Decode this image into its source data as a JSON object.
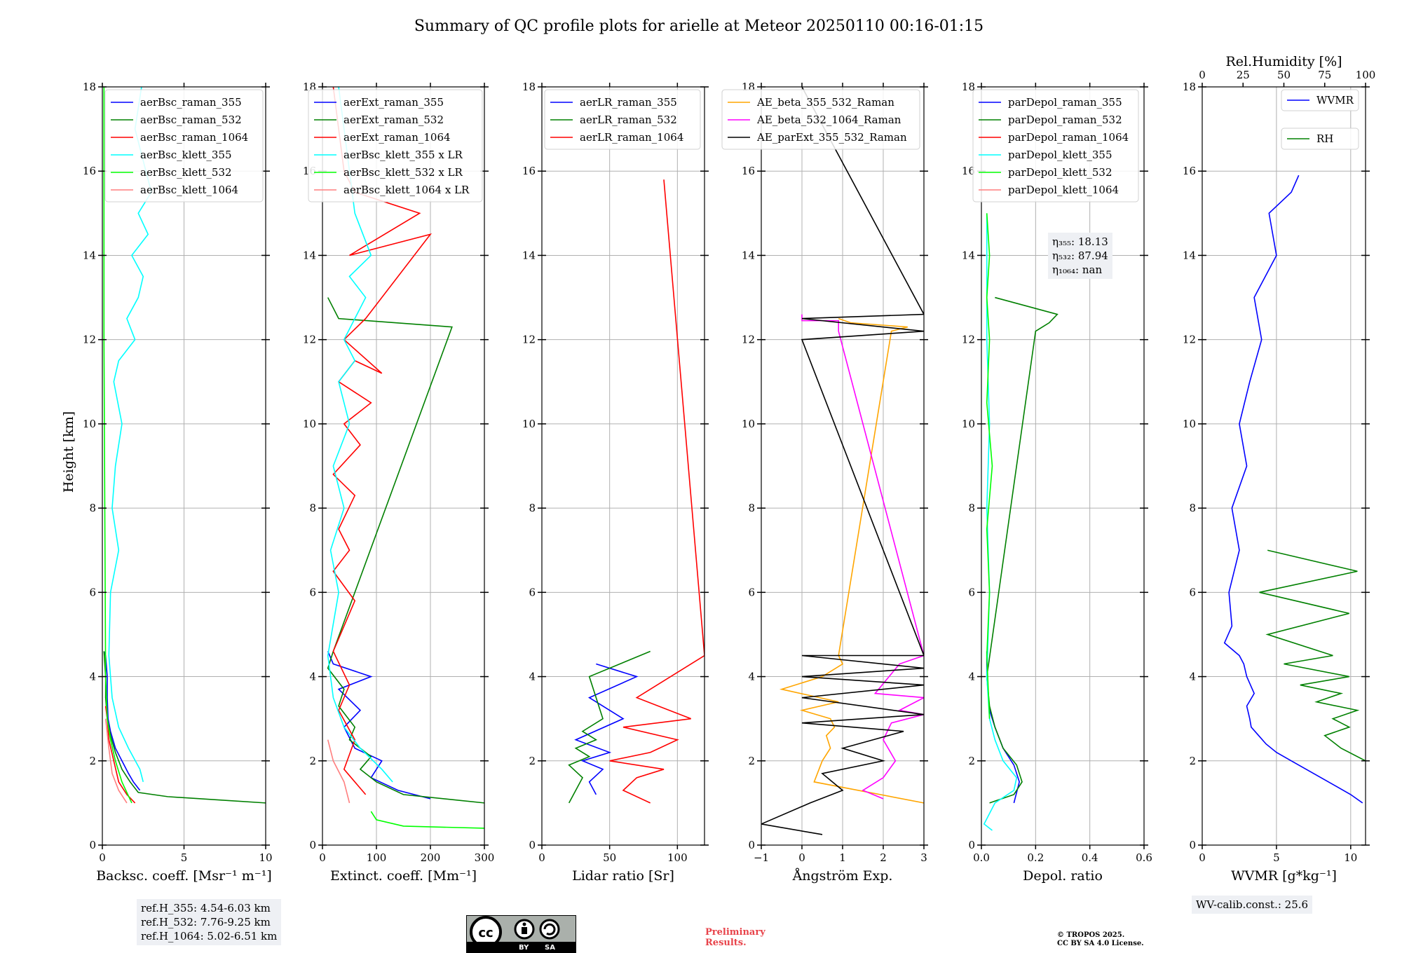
{
  "figure": {
    "title": "Summary of QC profile plots for arielle at Meteor 20250110 00:16-01:15",
    "ylabel": "Height [km]"
  },
  "info": {
    "ref_lines": [
      "ref.H_355: 4.54-6.03 km",
      "ref.H_532: 7.76-9.25 km",
      "ref.H_1064: 5.02-6.51 km"
    ],
    "eta_lines": [
      "η₃₅₅: 18.13",
      "η₅₃₂: 87.94",
      "η₁₀₆₄: nan"
    ],
    "wv_calib": "WV-calib.const.: 25.6",
    "preliminary": [
      "Preliminary",
      "Results."
    ],
    "copyright": [
      "© TROPOS 2025.",
      "CC BY SA 4.0 License."
    ],
    "cc_labels": [
      "cc",
      "BY",
      "SA"
    ]
  },
  "colors": {
    "blue": "#0000ff",
    "green": "#008000",
    "red": "#ff0000",
    "cyan": "#00ffff",
    "lime": "#00ff00",
    "salmon": "#ff7f7f",
    "orange": "#ffa500",
    "magenta": "#ff00ff",
    "black": "#000000"
  },
  "chart_data": [
    {
      "type": "line",
      "id": "backscatter",
      "xlabel": "Backsc. coeff. [Msr⁻¹ m⁻¹]",
      "xlim": [
        0,
        10
      ],
      "xticks": [
        0,
        5,
        10
      ],
      "ylim": [
        0,
        18
      ],
      "yticks": [
        0,
        2,
        4,
        6,
        8,
        10,
        12,
        14,
        16,
        18
      ],
      "legend_position": "top",
      "series": [
        {
          "name": "aerBsc_raman_355",
          "color": "blue",
          "x": [
            2.3,
            1.9,
            1.6,
            1.2,
            0.8,
            0.5,
            0.35,
            0.3,
            0.3,
            0.2,
            0.1
          ],
          "y": [
            1.3,
            1.5,
            1.7,
            2.0,
            2.3,
            2.7,
            3.0,
            3.5,
            4.0,
            4.5,
            4.6
          ]
        },
        {
          "name": "aerBsc_raman_532",
          "color": "green",
          "x": [
            10.0,
            4.0,
            2.2,
            1.7,
            1.2,
            0.8,
            0.5,
            0.3,
            0.2,
            0.2,
            0.1
          ],
          "y": [
            1.0,
            1.15,
            1.25,
            1.5,
            1.8,
            2.2,
            2.6,
            3.0,
            3.5,
            4.0,
            4.6
          ]
        },
        {
          "name": "aerBsc_raman_1064",
          "color": "red",
          "x": [
            2.0,
            1.5,
            1.0,
            0.7,
            0.4,
            0.3,
            0.2
          ],
          "y": [
            1.0,
            1.2,
            1.5,
            2.0,
            2.5,
            3.0,
            3.3
          ]
        },
        {
          "name": "aerBsc_klett_355",
          "color": "cyan",
          "x": [
            2.5,
            2.3,
            1.6,
            1.0,
            0.6,
            0.4,
            0.5,
            1.0,
            0.6,
            0.8,
            1.2,
            0.7,
            1.0,
            2.0,
            1.5,
            2.2,
            2.5,
            1.8,
            2.8,
            2.2,
            3.0,
            2.0,
            2.4
          ],
          "y": [
            1.5,
            1.8,
            2.3,
            2.8,
            3.5,
            4.5,
            6.0,
            7.0,
            8.0,
            9.0,
            10.0,
            11.0,
            11.5,
            12.0,
            12.5,
            13.0,
            13.5,
            14.0,
            14.5,
            15.0,
            15.5,
            17.0,
            18.0
          ]
        },
        {
          "name": "aerBsc_klett_532",
          "color": "lime",
          "x": [
            1.8,
            1.2,
            0.8,
            0.5,
            0.3,
            0.2,
            0.15,
            0.1,
            0.1
          ],
          "y": [
            1.0,
            1.5,
            2.0,
            2.5,
            3.0,
            4.0,
            8.0,
            12.0,
            18.0
          ]
        },
        {
          "name": "aerBsc_klett_1064",
          "color": "salmon",
          "x": [
            1.5,
            1.0,
            0.6,
            0.4,
            0.2
          ],
          "y": [
            1.0,
            1.3,
            1.7,
            2.3,
            3.0
          ]
        }
      ]
    },
    {
      "type": "line",
      "id": "extinction",
      "xlabel": "Extinct. coeff. [Mm⁻¹]",
      "xlim": [
        0,
        300
      ],
      "xticks": [
        0,
        100,
        200,
        300
      ],
      "ylim": [
        0,
        18
      ],
      "yticks": [
        0,
        2,
        4,
        6,
        8,
        10,
        12,
        14,
        16,
        18
      ],
      "legend_position": "top",
      "series": [
        {
          "name": "aerExt_raman_355",
          "color": "blue",
          "x": [
            200,
            140,
            90,
            110,
            60,
            40,
            70,
            30,
            90,
            20,
            10
          ],
          "y": [
            1.1,
            1.3,
            1.6,
            2.0,
            2.3,
            2.8,
            3.2,
            3.7,
            4.0,
            4.3,
            4.6
          ]
        },
        {
          "name": "aerExt_raman_532",
          "color": "green",
          "x": [
            300,
            150,
            100,
            70,
            90,
            50,
            60,
            30,
            40,
            10,
            20,
            240,
            30,
            10
          ],
          "y": [
            1.0,
            1.2,
            1.5,
            1.8,
            2.1,
            2.5,
            2.8,
            3.3,
            3.7,
            4.2,
            4.6,
            12.3,
            12.5,
            13.0
          ]
        },
        {
          "name": "aerExt_raman_1064",
          "color": "red",
          "x": [
            80,
            40,
            60,
            30,
            50,
            20,
            40,
            60,
            20,
            50,
            30,
            60,
            20,
            70,
            40,
            90,
            30,
            60,
            110,
            40,
            80,
            200,
            50,
            180,
            60,
            40,
            20
          ],
          "y": [
            1.2,
            1.8,
            2.5,
            3.2,
            3.8,
            4.6,
            5.2,
            5.8,
            6.5,
            7.0,
            7.5,
            8.3,
            8.8,
            9.5,
            10.0,
            10.5,
            11.0,
            11.5,
            11.2,
            12.0,
            12.5,
            14.5,
            14.0,
            15.0,
            15.5,
            16.0,
            18.0
          ]
        },
        {
          "name": "aerBsc_klett_355 x LR",
          "color": "cyan",
          "x": [
            130,
            110,
            70,
            40,
            20,
            10,
            30,
            15,
            40,
            20,
            50,
            30,
            60,
            40,
            80,
            50,
            90,
            60,
            40,
            30
          ],
          "y": [
            1.5,
            1.8,
            2.3,
            2.8,
            3.5,
            4.5,
            6.0,
            7.0,
            8.0,
            9.0,
            10.0,
            11.0,
            11.5,
            12.0,
            13.0,
            13.5,
            14.0,
            15.0,
            17.0,
            18.0
          ]
        },
        {
          "name": "aerBsc_klett_532 x LR",
          "color": "lime",
          "x": [
            300,
            150,
            100,
            90
          ],
          "y": [
            0.4,
            0.45,
            0.6,
            0.8
          ]
        },
        {
          "name": "aerBsc_klett_1064 x LR",
          "color": "salmon",
          "x": [
            50,
            40,
            20,
            10
          ],
          "y": [
            1.0,
            1.5,
            2.0,
            2.5
          ]
        }
      ]
    },
    {
      "type": "line",
      "id": "lidar_ratio",
      "xlabel": "Lidar ratio [Sr]",
      "xlim": [
        0,
        120
      ],
      "xticks": [
        0,
        50,
        100
      ],
      "ylim": [
        0,
        18
      ],
      "yticks": [
        0,
        2,
        4,
        6,
        8,
        10,
        12,
        14,
        16,
        18
      ],
      "legend_position": "top",
      "series": [
        {
          "name": "aerLR_raman_355",
          "color": "blue",
          "x": [
            40,
            35,
            45,
            30,
            50,
            25,
            60,
            35,
            70,
            40
          ],
          "y": [
            1.2,
            1.5,
            1.8,
            2.0,
            2.2,
            2.5,
            3.0,
            3.5,
            4.0,
            4.3
          ]
        },
        {
          "name": "aerLR_raman_532",
          "color": "green",
          "x": [
            20,
            25,
            30,
            20,
            35,
            25,
            40,
            30,
            45,
            35,
            80
          ],
          "y": [
            1.0,
            1.3,
            1.6,
            1.9,
            2.1,
            2.3,
            2.5,
            2.7,
            3.0,
            4.0,
            4.6
          ]
        },
        {
          "name": "aerLR_raman_1064",
          "color": "red",
          "x": [
            80,
            60,
            70,
            90,
            50,
            80,
            100,
            60,
            110,
            70,
            120,
            90
          ],
          "y": [
            1.0,
            1.3,
            1.6,
            1.8,
            2.0,
            2.2,
            2.5,
            2.8,
            3.0,
            3.5,
            4.5,
            15.8
          ]
        }
      ]
    },
    {
      "type": "line",
      "id": "angstrom",
      "xlabel": "Ångström Exp.",
      "xlim": [
        -1,
        3
      ],
      "xticks": [
        -1,
        0,
        1,
        2,
        3
      ],
      "ylim": [
        0,
        18
      ],
      "yticks": [
        0,
        2,
        4,
        6,
        8,
        10,
        12,
        14,
        16,
        18
      ],
      "legend_position": "top",
      "series": [
        {
          "name": "AE_beta_355_532_Raman",
          "color": "orange",
          "x": [
            3.0,
            0.3,
            0.5,
            0.7,
            0.6,
            0.8,
            0.7,
            0.0,
            0.9,
            -0.5,
            0.5,
            1.0,
            0.9,
            2.2,
            2.6,
            1.2,
            0.9
          ],
          "y": [
            1.0,
            1.5,
            2.0,
            2.3,
            2.6,
            2.8,
            3.0,
            3.2,
            3.4,
            3.7,
            4.0,
            4.3,
            4.5,
            12.2,
            12.3,
            12.4,
            12.5
          ]
        },
        {
          "name": "AE_beta_532_1064_Raman",
          "color": "magenta",
          "x": [
            2.0,
            1.5,
            2.0,
            2.3,
            2.0,
            2.2,
            3.0,
            2.4,
            3.0,
            1.8,
            2.4,
            3.0,
            0.9,
            0.9,
            0.0,
            0.0
          ],
          "y": [
            1.1,
            1.3,
            1.6,
            2.0,
            2.5,
            2.9,
            3.1,
            3.2,
            3.5,
            3.6,
            4.3,
            4.5,
            12.2,
            12.45,
            12.45,
            12.6
          ]
        },
        {
          "name": "AE_parExt_355_532_Raman",
          "color": "black",
          "x": [
            0.5,
            -1.0,
            0.2,
            1.0,
            0.5,
            2.0,
            1.0,
            2.5,
            0.0,
            3.0,
            0.0,
            3.0,
            0.0,
            3.0,
            0.0,
            3.0,
            0.0,
            3.0,
            0.0,
            3.0,
            0.0
          ],
          "y": [
            0.25,
            0.5,
            1.0,
            1.3,
            1.7,
            2.0,
            2.3,
            2.7,
            2.9,
            3.1,
            3.5,
            3.8,
            4.0,
            4.2,
            4.5,
            4.5,
            12.0,
            12.2,
            12.5,
            12.6,
            18.0
          ]
        }
      ]
    },
    {
      "type": "line",
      "id": "depolarization",
      "xlabel": "Depol. ratio",
      "xlim": [
        0,
        0.6
      ],
      "xticks": [
        0.0,
        0.2,
        0.4,
        0.6
      ],
      "ylim": [
        0,
        18
      ],
      "yticks": [
        0,
        2,
        4,
        6,
        8,
        10,
        12,
        14,
        16,
        18
      ],
      "legend_position": "top",
      "series": [
        {
          "name": "parDepol_raman_355",
          "color": "blue",
          "x": [
            0.12,
            0.14,
            0.12,
            0.08,
            0.05,
            0.03,
            0.02,
            0.02
          ],
          "y": [
            1.0,
            1.5,
            1.9,
            2.3,
            2.8,
            3.2,
            4.0,
            4.6
          ]
        },
        {
          "name": "parDepol_raman_532",
          "color": "green",
          "x": [
            0.03,
            0.12,
            0.15,
            0.13,
            0.08,
            0.05,
            0.03,
            0.02,
            0.2,
            0.25,
            0.28,
            0.05
          ],
          "y": [
            1.0,
            1.2,
            1.5,
            1.9,
            2.3,
            2.8,
            3.3,
            4.0,
            12.2,
            12.4,
            12.6,
            13.0
          ]
        },
        {
          "name": "parDepol_raman_1064",
          "color": "red",
          "x": [],
          "y": []
        },
        {
          "name": "parDepol_klett_355",
          "color": "cyan",
          "x": [
            0.04,
            0.01,
            0.05,
            0.12,
            0.13,
            0.08,
            0.05,
            0.03,
            0.02,
            0.03,
            0.02,
            0.03,
            0.02,
            0.02
          ],
          "y": [
            0.35,
            0.5,
            1.0,
            1.3,
            1.6,
            2.0,
            2.5,
            3.0,
            4.0,
            6.0,
            8.0,
            10.0,
            12.0,
            15.0
          ]
        },
        {
          "name": "parDepol_klett_532",
          "color": "lime",
          "x": [
            0.03,
            0.02,
            0.03,
            0.02,
            0.04,
            0.02,
            0.03,
            0.02,
            0.03,
            0.02
          ],
          "y": [
            3.0,
            4.5,
            6.0,
            7.5,
            9.0,
            10.5,
            12.0,
            13.0,
            14.0,
            15.0
          ]
        },
        {
          "name": "parDepol_klett_1064",
          "color": "salmon",
          "x": [],
          "y": []
        }
      ]
    },
    {
      "type": "line",
      "id": "wvmr_rh",
      "xlabel": "WVMR [g*kg⁻¹]",
      "xlim": [
        0,
        11
      ],
      "xticks": [
        0,
        5,
        10
      ],
      "top_xlabel": "Rel.Humidity [%]",
      "top_xlim": [
        0,
        100
      ],
      "top_xticks": [
        0,
        25,
        50,
        75,
        100
      ],
      "ylim": [
        0,
        18
      ],
      "yticks": [
        0,
        2,
        4,
        6,
        8,
        10,
        12,
        14,
        16,
        18
      ],
      "legend_position": "top-right",
      "series": [
        {
          "name": "WVMR",
          "color": "blue",
          "x": [
            10.8,
            10.0,
            9.0,
            8.0,
            7.0,
            6.0,
            5.0,
            4.3,
            3.8,
            3.3,
            3.2,
            3.0,
            3.5,
            3.0,
            2.8,
            2.5,
            1.5,
            2.0,
            1.8,
            2.5,
            2.0,
            3.0,
            2.5,
            3.2,
            4.0,
            3.5,
            5.0,
            4.5,
            6.0,
            6.5
          ],
          "y": [
            1.0,
            1.2,
            1.4,
            1.6,
            1.8,
            2.0,
            2.2,
            2.4,
            2.6,
            2.8,
            3.0,
            3.3,
            3.6,
            4.0,
            4.3,
            4.5,
            4.8,
            5.2,
            6.0,
            7.0,
            8.0,
            9.0,
            10.0,
            11.0,
            12.0,
            13.0,
            14.0,
            15.0,
            15.5,
            15.9
          ]
        },
        {
          "name": "RH",
          "color": "green",
          "x": [
            100,
            85,
            75,
            90,
            80,
            95,
            70,
            85,
            60,
            90,
            50,
            80,
            40,
            90,
            35,
            95,
            40
          ],
          "y": [
            2.0,
            2.3,
            2.6,
            2.8,
            3.0,
            3.2,
            3.4,
            3.6,
            3.8,
            4.0,
            4.3,
            4.5,
            5.0,
            5.5,
            6.0,
            6.5,
            7.0
          ]
        }
      ]
    }
  ]
}
